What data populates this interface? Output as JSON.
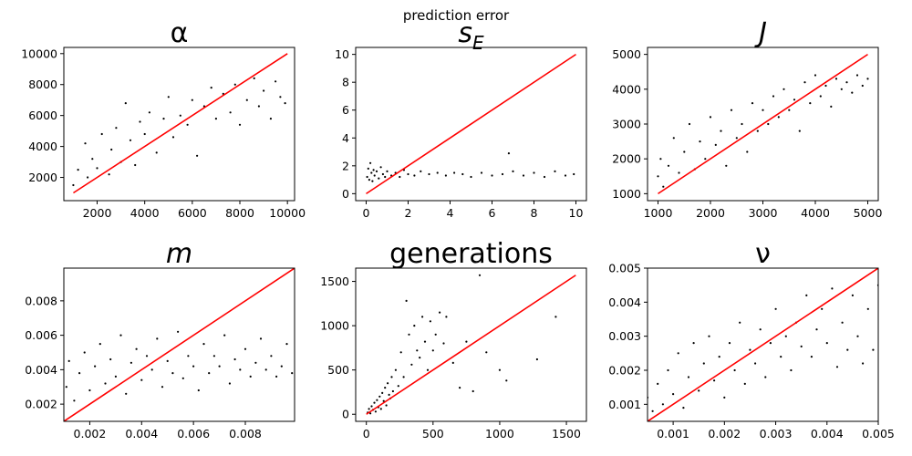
{
  "figure": {
    "suptitle": "prediction error"
  },
  "chart_data": [
    {
      "type": "scatter",
      "title": "α",
      "xlim": [
        600,
        10300
      ],
      "ylim": [
        500,
        10400
      ],
      "xticks": [
        2000,
        4000,
        6000,
        8000,
        10000
      ],
      "yticks": [
        2000,
        4000,
        6000,
        8000,
        10000
      ],
      "tick_labels_x": [
        "2000",
        "4000",
        "6000",
        "8000",
        "10000"
      ],
      "tick_labels_y": [
        "2000",
        "4000",
        "6000",
        "8000",
        "10000"
      ],
      "reference_line": {
        "from": [
          1000,
          1000
        ],
        "to": [
          10000,
          10000
        ],
        "color": "#ff0000"
      },
      "point_color": "#000000",
      "points": [
        [
          1000,
          1500
        ],
        [
          1200,
          2500
        ],
        [
          1500,
          4200
        ],
        [
          1600,
          2000
        ],
        [
          1800,
          3200
        ],
        [
          2000,
          2600
        ],
        [
          2200,
          4800
        ],
        [
          2500,
          2200
        ],
        [
          2600,
          3800
        ],
        [
          2800,
          5200
        ],
        [
          3000,
          3000
        ],
        [
          3200,
          6800
        ],
        [
          3400,
          4400
        ],
        [
          3600,
          2800
        ],
        [
          3800,
          5600
        ],
        [
          4000,
          4800
        ],
        [
          4200,
          6200
        ],
        [
          4500,
          3600
        ],
        [
          4800,
          5800
        ],
        [
          5000,
          7200
        ],
        [
          5200,
          4600
        ],
        [
          5500,
          6000
        ],
        [
          5800,
          5400
        ],
        [
          6000,
          7000
        ],
        [
          6200,
          3400
        ],
        [
          6500,
          6600
        ],
        [
          6800,
          7800
        ],
        [
          7000,
          5800
        ],
        [
          7300,
          7400
        ],
        [
          7600,
          6200
        ],
        [
          7800,
          8000
        ],
        [
          8000,
          5400
        ],
        [
          8300,
          7000
        ],
        [
          8600,
          8400
        ],
        [
          8800,
          6600
        ],
        [
          9000,
          7600
        ],
        [
          9300,
          5800
        ],
        [
          9500,
          8200
        ],
        [
          9700,
          7200
        ],
        [
          9900,
          6800
        ]
      ]
    },
    {
      "type": "scatter",
      "title": "s_E",
      "title_main": "s",
      "title_sub": "E",
      "xlim": [
        -0.5,
        10.5
      ],
      "ylim": [
        -0.5,
        10.5
      ],
      "xticks": [
        0,
        2,
        4,
        6,
        8,
        10
      ],
      "yticks": [
        0,
        2,
        4,
        6,
        8,
        10
      ],
      "tick_labels_x": [
        "0",
        "2",
        "4",
        "6",
        "8",
        "10"
      ],
      "tick_labels_y": [
        "0",
        "2",
        "4",
        "6",
        "8",
        "10"
      ],
      "reference_line": {
        "from": [
          0,
          0
        ],
        "to": [
          10,
          10
        ],
        "color": "#ff0000"
      },
      "point_color": "#000000",
      "points": [
        [
          0.05,
          1.2
        ],
        [
          0.1,
          1.8
        ],
        [
          0.15,
          1.0
        ],
        [
          0.2,
          2.2
        ],
        [
          0.25,
          1.5
        ],
        [
          0.3,
          0.9
        ],
        [
          0.35,
          1.7
        ],
        [
          0.4,
          1.3
        ],
        [
          0.5,
          1.6
        ],
        [
          0.6,
          1.1
        ],
        [
          0.7,
          1.9
        ],
        [
          0.8,
          1.4
        ],
        [
          0.9,
          1.2
        ],
        [
          1.0,
          1.6
        ],
        [
          1.2,
          1.3
        ],
        [
          1.4,
          1.5
        ],
        [
          1.6,
          1.2
        ],
        [
          1.8,
          1.7
        ],
        [
          2.0,
          1.4
        ],
        [
          2.3,
          1.3
        ],
        [
          2.6,
          1.6
        ],
        [
          3.0,
          1.4
        ],
        [
          3.4,
          1.5
        ],
        [
          3.8,
          1.3
        ],
        [
          4.2,
          1.5
        ],
        [
          4.6,
          1.4
        ],
        [
          5.0,
          1.2
        ],
        [
          5.5,
          1.5
        ],
        [
          6.0,
          1.3
        ],
        [
          6.5,
          1.4
        ],
        [
          6.8,
          2.9
        ],
        [
          7.0,
          1.6
        ],
        [
          7.5,
          1.3
        ],
        [
          8.0,
          1.5
        ],
        [
          8.5,
          1.2
        ],
        [
          9.0,
          1.6
        ],
        [
          9.5,
          1.3
        ],
        [
          9.9,
          1.4
        ]
      ]
    },
    {
      "type": "scatter",
      "title": "J",
      "xlim": [
        800,
        5200
      ],
      "ylim": [
        800,
        5200
      ],
      "xticks": [
        1000,
        2000,
        3000,
        4000,
        5000
      ],
      "yticks": [
        1000,
        2000,
        3000,
        4000,
        5000
      ],
      "tick_labels_x": [
        "1000",
        "2000",
        "3000",
        "4000",
        "5000"
      ],
      "tick_labels_y": [
        "1000",
        "2000",
        "3000",
        "4000",
        "5000"
      ],
      "reference_line": {
        "from": [
          1000,
          1000
        ],
        "to": [
          5000,
          5000
        ],
        "color": "#ff0000"
      },
      "point_color": "#000000",
      "points": [
        [
          1000,
          1500
        ],
        [
          1050,
          2000
        ],
        [
          1100,
          1200
        ],
        [
          1200,
          1800
        ],
        [
          1300,
          2600
        ],
        [
          1400,
          1600
        ],
        [
          1500,
          2200
        ],
        [
          1600,
          3000
        ],
        [
          1700,
          1700
        ],
        [
          1800,
          2500
        ],
        [
          1900,
          2000
        ],
        [
          2000,
          3200
        ],
        [
          2100,
          2400
        ],
        [
          2200,
          2800
        ],
        [
          2300,
          1800
        ],
        [
          2400,
          3400
        ],
        [
          2500,
          2600
        ],
        [
          2600,
          3000
        ],
        [
          2700,
          2200
        ],
        [
          2800,
          3600
        ],
        [
          2900,
          2800
        ],
        [
          3000,
          3400
        ],
        [
          3100,
          3000
        ],
        [
          3200,
          3800
        ],
        [
          3300,
          3200
        ],
        [
          3400,
          4000
        ],
        [
          3500,
          3400
        ],
        [
          3600,
          3700
        ],
        [
          3700,
          2800
        ],
        [
          3800,
          4200
        ],
        [
          3900,
          3600
        ],
        [
          4000,
          4400
        ],
        [
          4100,
          3800
        ],
        [
          4200,
          4100
        ],
        [
          4300,
          3500
        ],
        [
          4400,
          4300
        ],
        [
          4500,
          4000
        ],
        [
          4600,
          4200
        ],
        [
          4700,
          3900
        ],
        [
          4800,
          4400
        ],
        [
          4900,
          4100
        ],
        [
          5000,
          4300
        ]
      ]
    },
    {
      "type": "scatter",
      "title": "m",
      "xlim": [
        0.001,
        0.0099
      ],
      "ylim": [
        0.001,
        0.0099
      ],
      "xticks": [
        0.002,
        0.004,
        0.006,
        0.008
      ],
      "yticks": [
        0.002,
        0.004,
        0.006,
        0.008
      ],
      "tick_labels_x": [
        "0.002",
        "0.004",
        "0.006",
        "0.008"
      ],
      "tick_labels_y": [
        "0.002",
        "0.004",
        "0.006",
        "0.008"
      ],
      "reference_line": {
        "from": [
          0.001,
          0.001
        ],
        "to": [
          0.0099,
          0.0099
        ],
        "color": "#ff0000"
      },
      "point_color": "#000000",
      "points": [
        [
          0.0011,
          0.003
        ],
        [
          0.0012,
          0.0045
        ],
        [
          0.0014,
          0.0022
        ],
        [
          0.0016,
          0.0038
        ],
        [
          0.0018,
          0.005
        ],
        [
          0.002,
          0.0028
        ],
        [
          0.0022,
          0.0042
        ],
        [
          0.0024,
          0.0055
        ],
        [
          0.0026,
          0.0032
        ],
        [
          0.0028,
          0.0046
        ],
        [
          0.003,
          0.0036
        ],
        [
          0.0032,
          0.006
        ],
        [
          0.0034,
          0.0026
        ],
        [
          0.0036,
          0.0044
        ],
        [
          0.0038,
          0.0052
        ],
        [
          0.004,
          0.0034
        ],
        [
          0.0042,
          0.0048
        ],
        [
          0.0044,
          0.004
        ],
        [
          0.0046,
          0.0058
        ],
        [
          0.0048,
          0.003
        ],
        [
          0.005,
          0.0045
        ],
        [
          0.0052,
          0.0038
        ],
        [
          0.0054,
          0.0062
        ],
        [
          0.0056,
          0.0035
        ],
        [
          0.0058,
          0.0048
        ],
        [
          0.006,
          0.0042
        ],
        [
          0.0062,
          0.0028
        ],
        [
          0.0064,
          0.0055
        ],
        [
          0.0066,
          0.0038
        ],
        [
          0.0068,
          0.0048
        ],
        [
          0.007,
          0.0042
        ],
        [
          0.0072,
          0.006
        ],
        [
          0.0074,
          0.0032
        ],
        [
          0.0076,
          0.0046
        ],
        [
          0.0078,
          0.004
        ],
        [
          0.008,
          0.0052
        ],
        [
          0.0082,
          0.0036
        ],
        [
          0.0084,
          0.0044
        ],
        [
          0.0086,
          0.0058
        ],
        [
          0.0088,
          0.004
        ],
        [
          0.009,
          0.0048
        ],
        [
          0.0092,
          0.0036
        ],
        [
          0.0094,
          0.0042
        ],
        [
          0.0096,
          0.0055
        ],
        [
          0.0098,
          0.0038
        ]
      ]
    },
    {
      "type": "scatter",
      "title": "generations",
      "xlim": [
        -80,
        1650
      ],
      "ylim": [
        -80,
        1650
      ],
      "xticks": [
        0,
        500,
        1000,
        1500
      ],
      "yticks": [
        0,
        500,
        1000,
        1500
      ],
      "tick_labels_x": [
        "0",
        "500",
        "1000",
        "1500"
      ],
      "tick_labels_y": [
        "0",
        "500",
        "1000",
        "1500"
      ],
      "reference_line": {
        "from": [
          0,
          0
        ],
        "to": [
          1570,
          1570
        ],
        "color": "#ff0000"
      },
      "point_color": "#000000",
      "points": [
        [
          10,
          20
        ],
        [
          20,
          60
        ],
        [
          30,
          10
        ],
        [
          40,
          90
        ],
        [
          50,
          50
        ],
        [
          60,
          130
        ],
        [
          70,
          30
        ],
        [
          80,
          160
        ],
        [
          90,
          80
        ],
        [
          100,
          200
        ],
        [
          110,
          60
        ],
        [
          120,
          240
        ],
        [
          130,
          150
        ],
        [
          140,
          300
        ],
        [
          150,
          100
        ],
        [
          160,
          350
        ],
        [
          170,
          220
        ],
        [
          180,
          180
        ],
        [
          190,
          420
        ],
        [
          200,
          260
        ],
        [
          220,
          500
        ],
        [
          240,
          320
        ],
        [
          260,
          700
        ],
        [
          280,
          420
        ],
        [
          300,
          1280
        ],
        [
          320,
          900
        ],
        [
          340,
          560
        ],
        [
          360,
          1000
        ],
        [
          380,
          720
        ],
        [
          400,
          640
        ],
        [
          420,
          1100
        ],
        [
          440,
          820
        ],
        [
          460,
          500
        ],
        [
          480,
          1050
        ],
        [
          500,
          720
        ],
        [
          520,
          900
        ],
        [
          550,
          1150
        ],
        [
          580,
          800
        ],
        [
          600,
          1100
        ],
        [
          650,
          580
        ],
        [
          700,
          300
        ],
        [
          750,
          820
        ],
        [
          800,
          260
        ],
        [
          850,
          1570
        ],
        [
          900,
          700
        ],
        [
          1000,
          500
        ],
        [
          1050,
          380
        ],
        [
          1280,
          620
        ],
        [
          1420,
          1100
        ]
      ]
    },
    {
      "type": "scatter",
      "title": "ν",
      "xlim": [
        0.0005,
        0.005
      ],
      "ylim": [
        0.0005,
        0.005
      ],
      "xticks": [
        0.001,
        0.002,
        0.003,
        0.004,
        0.005
      ],
      "yticks": [
        0.001,
        0.002,
        0.003,
        0.004,
        0.005
      ],
      "tick_labels_x": [
        "0.001",
        "0.002",
        "0.003",
        "0.004",
        "0.005"
      ],
      "tick_labels_y": [
        "0.001",
        "0.002",
        "0.003",
        "0.004",
        "0.005"
      ],
      "reference_line": {
        "from": [
          0.0005,
          0.0005
        ],
        "to": [
          0.005,
          0.005
        ],
        "color": "#ff0000"
      },
      "point_color": "#000000",
      "points": [
        [
          0.0005,
          0.0012
        ],
        [
          0.0006,
          0.0008
        ],
        [
          0.0007,
          0.0016
        ],
        [
          0.0008,
          0.001
        ],
        [
          0.0009,
          0.002
        ],
        [
          0.001,
          0.0013
        ],
        [
          0.0011,
          0.0025
        ],
        [
          0.0012,
          0.0009
        ],
        [
          0.0013,
          0.0018
        ],
        [
          0.0014,
          0.0028
        ],
        [
          0.0015,
          0.0014
        ],
        [
          0.0016,
          0.0022
        ],
        [
          0.0017,
          0.003
        ],
        [
          0.0018,
          0.0017
        ],
        [
          0.0019,
          0.0024
        ],
        [
          0.002,
          0.0012
        ],
        [
          0.0021,
          0.0028
        ],
        [
          0.0022,
          0.002
        ],
        [
          0.0023,
          0.0034
        ],
        [
          0.0024,
          0.0016
        ],
        [
          0.0025,
          0.0026
        ],
        [
          0.0026,
          0.0022
        ],
        [
          0.0027,
          0.0032
        ],
        [
          0.0028,
          0.0018
        ],
        [
          0.0029,
          0.0028
        ],
        [
          0.003,
          0.0038
        ],
        [
          0.0031,
          0.0024
        ],
        [
          0.0032,
          0.003
        ],
        [
          0.0033,
          0.002
        ],
        [
          0.0034,
          0.0034
        ],
        [
          0.0035,
          0.0027
        ],
        [
          0.0036,
          0.0042
        ],
        [
          0.0037,
          0.0024
        ],
        [
          0.0038,
          0.0032
        ],
        [
          0.0039,
          0.0038
        ],
        [
          0.004,
          0.0028
        ],
        [
          0.0041,
          0.0044
        ],
        [
          0.0042,
          0.0021
        ],
        [
          0.0043,
          0.0034
        ],
        [
          0.0044,
          0.0026
        ],
        [
          0.0045,
          0.0042
        ],
        [
          0.0046,
          0.003
        ],
        [
          0.0047,
          0.0022
        ],
        [
          0.0048,
          0.0038
        ],
        [
          0.0049,
          0.0026
        ],
        [
          0.005,
          0.0045
        ]
      ]
    }
  ]
}
